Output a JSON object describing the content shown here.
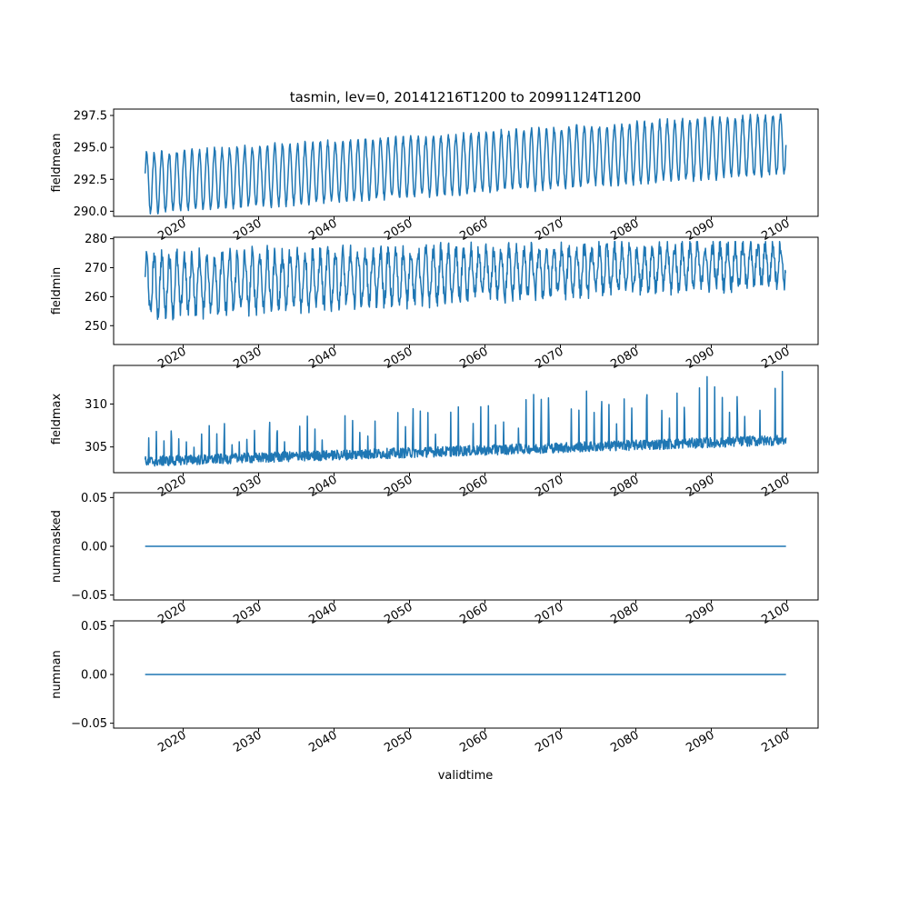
{
  "chart_data": {
    "type": "line",
    "title": "tasmin, lev=0, 20141216T1200 to 20991124T1200",
    "xlabel": "validtime",
    "x_range": [
      "2014-12-16",
      "2099-11-24"
    ],
    "x_tick_labels": [
      "2020",
      "2030",
      "2040",
      "2050",
      "2060",
      "2070",
      "2080",
      "2090",
      "2100"
    ],
    "color": "#1f77b4",
    "panels": [
      {
        "ylabel": "fieldmean",
        "yticks": [
          "297.5",
          "295.0",
          "292.5",
          "290.0"
        ],
        "ylim": [
          289.6,
          298.0
        ],
        "series": {
          "trend_start": 292.2,
          "trend_end": 295.3,
          "amp_start": 2.3,
          "amp_end": 2.3,
          "noise": 0.25,
          "min_clip": 289.8,
          "max_clip": 297.6
        }
      },
      {
        "ylabel": "fieldmin",
        "yticks": [
          "280",
          "270",
          "260",
          "250"
        ],
        "ylim": [
          243.5,
          280.5
        ],
        "series": {
          "trend_start": 264,
          "trend_end": 271.5,
          "amp_start": 10,
          "amp_end": 6.5,
          "noise": 3,
          "min_clip": 245,
          "max_clip": 279
        }
      },
      {
        "ylabel": "fieldmax",
        "yticks": [
          "310",
          "305"
        ],
        "ylim": [
          302.0,
          314.5
        ],
        "series": {
          "baseline_start": 303.3,
          "baseline_end": 305.8,
          "noise": 0.6,
          "spike_start": 3.5,
          "spike_end": 8.5,
          "min_clip": 302.5,
          "max_clip": 313.8
        }
      },
      {
        "ylabel": "nummasked",
        "yticks": [
          "0.05",
          "0.00",
          "−0.05"
        ],
        "ylim": [
          -0.055,
          0.055
        ],
        "series": {
          "constant": 0
        }
      },
      {
        "ylabel": "numnan",
        "yticks": [
          "0.05",
          "0.00",
          "−0.05"
        ],
        "ylim": [
          -0.055,
          0.055
        ],
        "series": {
          "constant": 0
        }
      }
    ]
  }
}
